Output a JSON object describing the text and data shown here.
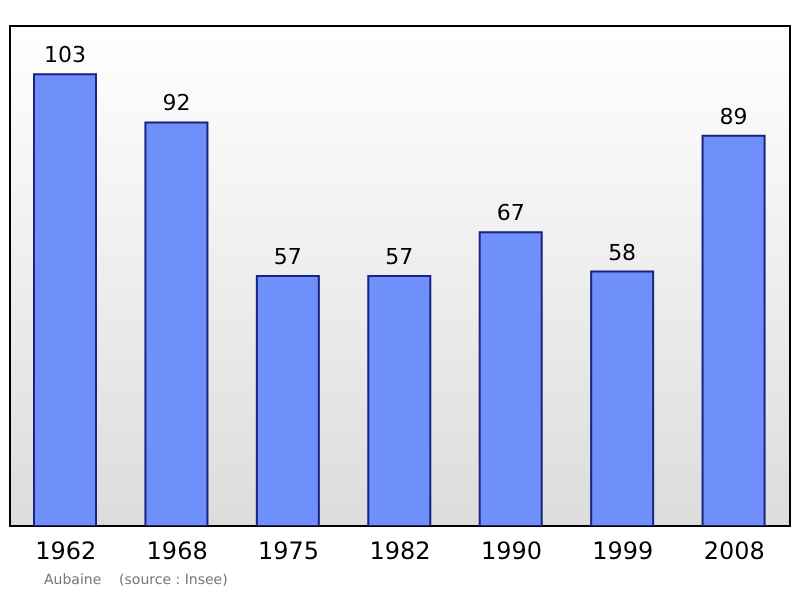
{
  "chart_data": {
    "type": "bar",
    "categories": [
      "1962",
      "1968",
      "1975",
      "1982",
      "1990",
      "1999",
      "2008"
    ],
    "values": [
      103,
      92,
      57,
      57,
      67,
      58,
      89
    ],
    "color": "#6f8ffb",
    "ylim": [
      0,
      114
    ],
    "data_labels": true,
    "tick_labels": "x",
    "annotations": [
      "Aubaine    (source : Insee)"
    ]
  }
}
